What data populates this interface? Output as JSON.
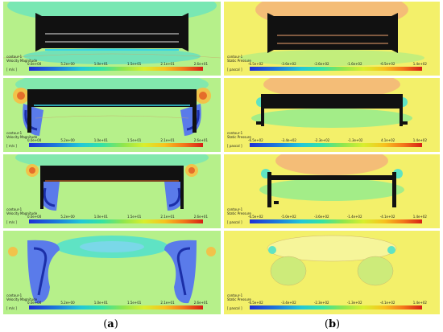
{
  "colors": {
    "background_field": "#aef286",
    "pressure_background": "#f3f06a",
    "geometry": "#111111",
    "colorbar": [
      "#1f2fd6",
      "#22c8d8",
      "#8ee64e",
      "#f7c21e",
      "#d61f16"
    ]
  },
  "column_a": {
    "caption_letter": "a",
    "panels": [
      {
        "title_line1": "contour-1",
        "title_line2": "Velocity Magnitude",
        "unit": "[ m/s ]",
        "ticks": [
          "0.0e+00",
          "5.2e+00",
          "1.0e+01",
          "1.5e+01",
          "2.1e+01",
          "2.6e+01"
        ]
      },
      {
        "title_line1": "contour-1",
        "title_line2": "Velocity Magnitude",
        "unit": "[ m/s ]",
        "ticks": [
          "0.0e+00",
          "5.2e+00",
          "1.0e+01",
          "1.5e+01",
          "2.1e+01",
          "2.6e+01"
        ]
      },
      {
        "title_line1": "contour-1",
        "title_line2": "Velocity Magnitude",
        "unit": "[ m/s ]",
        "ticks": [
          "0.0e+00",
          "5.2e+00",
          "1.0e+01",
          "1.5e+01",
          "2.1e+01",
          "2.6e+01"
        ]
      },
      {
        "title_line1": "contour-1",
        "title_line2": "Velocity Magnitude",
        "unit": "[ m/s ]",
        "ticks": [
          "0.0e+00",
          "5.2e+00",
          "1.0e+01",
          "1.5e+01",
          "2.1e+01",
          "2.6e+01"
        ]
      }
    ]
  },
  "column_b": {
    "caption_letter": "b",
    "panels": [
      {
        "title_line1": "contour-1",
        "title_line2": "Static Pressure",
        "unit": "[ pascal ]",
        "ticks": [
          "-6.5e+02",
          "-3.6e+02",
          "-2.6e+02",
          "-1.6e+02",
          "-6.5e+02",
          "1.4e+02"
        ]
      },
      {
        "title_line1": "contour-1",
        "title_line2": "Static Pressure",
        "unit": "[ pascal ]",
        "ticks": [
          "-6.5e+02",
          "-3.4e+02",
          "-2.3e+02",
          "-1.3e+02",
          "4.1e+02",
          "1.4e+02"
        ]
      },
      {
        "title_line1": "contour-1",
        "title_line2": "Static Pressure",
        "unit": "[ pascal ]",
        "ticks": [
          "-6.5e+02",
          "-5.0e+02",
          "-3.6e+02",
          "-1.4e+02",
          "-4.1e+02",
          "1.4e+02"
        ]
      },
      {
        "title_line1": "contour-1",
        "title_line2": "Static Pressure",
        "unit": "[ pascal ]",
        "ticks": [
          "-6.5e+02",
          "-3.4e+02",
          "-2.3e+02",
          "-1.3e+02",
          "-4.1e+02",
          "1.4e+02"
        ]
      }
    ]
  }
}
